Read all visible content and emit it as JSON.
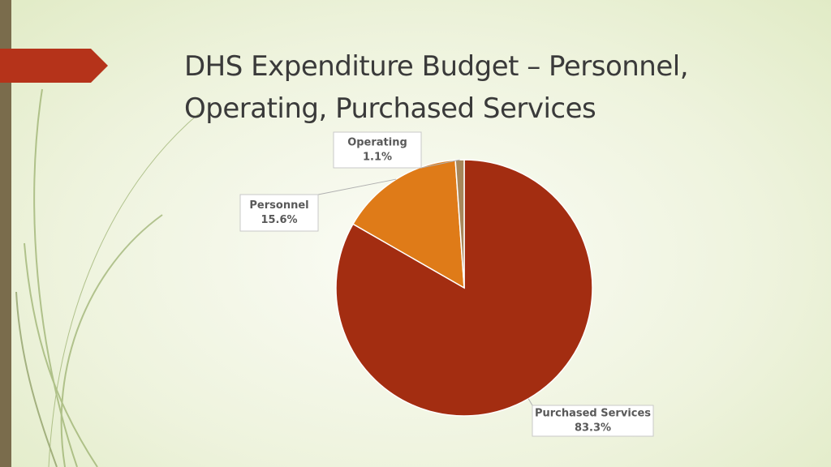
{
  "chart_data": {
    "type": "pie",
    "title": "DHS Expenditure Budget – Personnel, Operating, Purchased Services",
    "categories": [
      "Purchased Services",
      "Personnel",
      "Operating"
    ],
    "values": [
      83.3,
      15.6,
      1.1
    ],
    "value_labels": [
      "83.3%",
      "15.6%",
      "1.1%"
    ],
    "colors": [
      "#a32d11",
      "#df7b18",
      "#a8875a"
    ]
  }
}
